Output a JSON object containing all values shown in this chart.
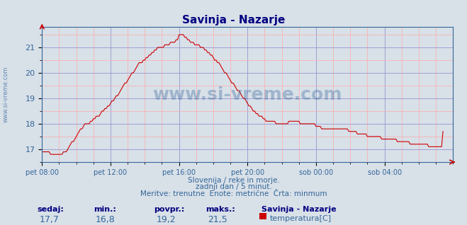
{
  "title": "Savinja - Nazarje",
  "title_color": "#000080",
  "bg_color": "#d8e0e8",
  "plot_bg_color": "#d8e0e8",
  "line_color": "#cc0000",
  "grid_color_major": "#8888cc",
  "grid_color_minor": "#ffaaaa",
  "watermark_text": "www.si-vreme.com",
  "watermark_color": "#336699",
  "ylabel_text": "www.si-vreme.com",
  "ylabel_color": "#336699",
  "x_tick_labels": [
    "pet 08:00",
    "pet 12:00",
    "pet 16:00",
    "pet 20:00",
    "sob 00:00",
    "sob 04:00"
  ],
  "x_tick_positions": [
    0,
    48,
    96,
    144,
    192,
    240
  ],
  "ylim": [
    16.6,
    21.8
  ],
  "yticks": [
    17,
    18,
    19,
    20,
    21
  ],
  "xlabel": "",
  "footer_line1": "Slovenija / reke in morje.",
  "footer_line2": "zadnji dan / 5 minut.",
  "footer_line3": "Meritve: trenutne  Enote: metrične  Črta: minmum",
  "footer_color": "#336699",
  "stats_labels": [
    "sedaj:",
    "min.:",
    "povpr.:",
    "maks.:"
  ],
  "stats_values": [
    "17,7",
    "16,8",
    "19,2",
    "21,5"
  ],
  "legend_title": "Savinja - Nazarje",
  "legend_label": "temperatura[C]",
  "legend_color": "#cc0000",
  "total_points": 289,
  "temp_data": [
    16.9,
    16.9,
    16.9,
    16.9,
    16.9,
    16.9,
    16.8,
    16.8,
    16.8,
    16.8,
    16.8,
    16.8,
    16.8,
    16.8,
    16.8,
    16.9,
    16.9,
    16.9,
    17.0,
    17.1,
    17.2,
    17.3,
    17.3,
    17.4,
    17.5,
    17.6,
    17.7,
    17.8,
    17.8,
    17.9,
    18.0,
    18.0,
    18.0,
    18.0,
    18.1,
    18.1,
    18.2,
    18.2,
    18.3,
    18.3,
    18.3,
    18.4,
    18.5,
    18.5,
    18.6,
    18.6,
    18.7,
    18.7,
    18.8,
    18.9,
    18.9,
    19.0,
    19.1,
    19.1,
    19.2,
    19.3,
    19.4,
    19.5,
    19.6,
    19.6,
    19.7,
    19.8,
    19.9,
    20.0,
    20.0,
    20.1,
    20.2,
    20.3,
    20.4,
    20.4,
    20.4,
    20.5,
    20.5,
    20.6,
    20.6,
    20.7,
    20.7,
    20.8,
    20.8,
    20.9,
    20.9,
    21.0,
    21.0,
    21.0,
    21.0,
    21.0,
    21.1,
    21.1,
    21.1,
    21.1,
    21.2,
    21.2,
    21.2,
    21.2,
    21.3,
    21.3,
    21.5,
    21.5,
    21.5,
    21.5,
    21.4,
    21.4,
    21.3,
    21.3,
    21.2,
    21.2,
    21.2,
    21.1,
    21.1,
    21.1,
    21.1,
    21.0,
    21.0,
    21.0,
    20.9,
    20.9,
    20.8,
    20.8,
    20.7,
    20.7,
    20.6,
    20.5,
    20.5,
    20.4,
    20.4,
    20.3,
    20.2,
    20.1,
    20.0,
    20.0,
    19.9,
    19.8,
    19.7,
    19.6,
    19.6,
    19.5,
    19.4,
    19.3,
    19.3,
    19.2,
    19.1,
    19.0,
    19.0,
    18.9,
    18.8,
    18.7,
    18.7,
    18.6,
    18.5,
    18.5,
    18.4,
    18.4,
    18.3,
    18.3,
    18.3,
    18.2,
    18.2,
    18.1,
    18.1,
    18.1,
    18.1,
    18.1,
    18.1,
    18.1,
    18.0,
    18.0,
    18.0,
    18.0,
    18.0,
    18.0,
    18.0,
    18.0,
    18.0,
    18.1,
    18.1,
    18.1,
    18.1,
    18.1,
    18.1,
    18.1,
    18.1,
    18.0,
    18.0,
    18.0,
    18.0,
    18.0,
    18.0,
    18.0,
    18.0,
    18.0,
    18.0,
    18.0,
    17.9,
    17.9,
    17.9,
    17.9,
    17.8,
    17.8,
    17.8,
    17.8,
    17.8,
    17.8,
    17.8,
    17.8,
    17.8,
    17.8,
    17.8,
    17.8,
    17.8,
    17.8,
    17.8,
    17.8,
    17.8,
    17.8,
    17.8,
    17.7,
    17.7,
    17.7,
    17.7,
    17.7,
    17.7,
    17.6,
    17.6,
    17.6,
    17.6,
    17.6,
    17.6,
    17.6,
    17.5,
    17.5,
    17.5,
    17.5,
    17.5,
    17.5,
    17.5,
    17.5,
    17.5,
    17.5,
    17.4,
    17.4,
    17.4,
    17.4,
    17.4,
    17.4,
    17.4,
    17.4,
    17.4,
    17.4,
    17.4,
    17.3,
    17.3,
    17.3,
    17.3,
    17.3,
    17.3,
    17.3,
    17.3,
    17.3,
    17.2,
    17.2,
    17.2,
    17.2,
    17.2,
    17.2,
    17.2,
    17.2,
    17.2,
    17.2,
    17.2,
    17.2,
    17.2,
    17.1,
    17.1,
    17.1,
    17.1,
    17.1,
    17.1,
    17.1,
    17.1,
    17.1,
    17.1,
    17.7
  ]
}
